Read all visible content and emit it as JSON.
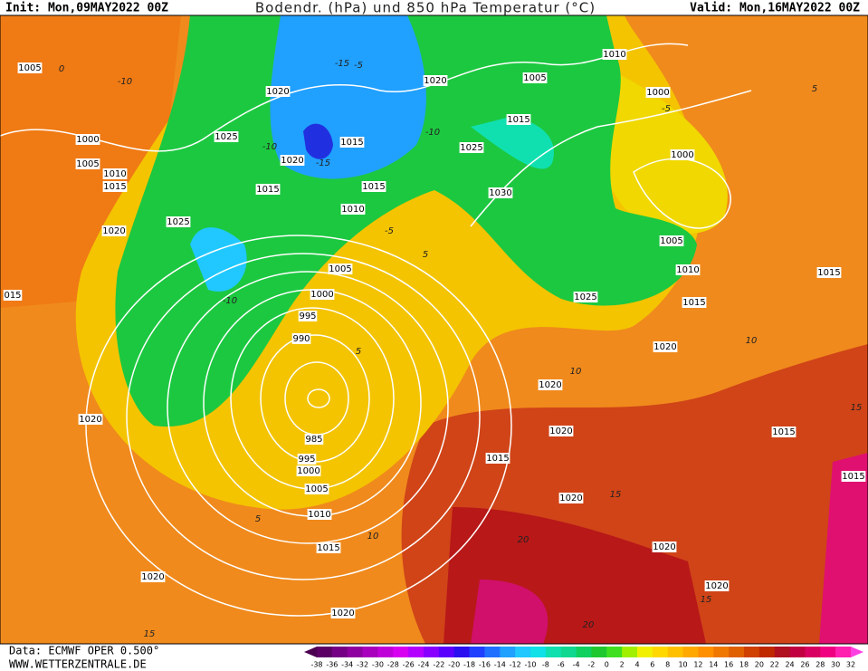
{
  "header": {
    "init": "Init: Mon,09MAY2022 00Z",
    "title": "Bodendr. (hPa) und 850 hPa Temperatur (°C)",
    "valid": "Valid: Mon,16MAY2022 00Z"
  },
  "map": {
    "isobar_labels": [
      "1005",
      "1020",
      "1020",
      "1010",
      "1005",
      "1000",
      "1025",
      "1015",
      "1015",
      "1025",
      "1000",
      "1005",
      "1010",
      "1015",
      "1020",
      "1015",
      "1015",
      "1010",
      "1030",
      "1000",
      "1025",
      "1020",
      "1005",
      "1005",
      "1010",
      "1015",
      "1000",
      "1025",
      "1015",
      "995",
      "990",
      "1020",
      "1020",
      "1020",
      "1020",
      "1015",
      "985",
      "995",
      "1000",
      "1015",
      "1005",
      "1020",
      "1010",
      "1015",
      "1020",
      "1020",
      "1020",
      "1020",
      "015",
      "1015"
    ],
    "temperature_labels": [
      "0",
      "-10",
      "-5",
      "-15",
      "-10",
      "-15",
      "-10",
      "-10",
      "-5",
      "5",
      "5",
      "5",
      "10",
      "10",
      "-5",
      "5",
      "10",
      "15",
      "15",
      "15",
      "20",
      "20",
      "15"
    ]
  },
  "footer": {
    "data": "Data: ECMWF OPER 0.500°",
    "site": "WWW.WETTERZENTRALE.DE"
  },
  "colorbar": {
    "ticks": [
      -38,
      -36,
      -34,
      -32,
      -30,
      -28,
      -26,
      -24,
      -22,
      -20,
      -18,
      -16,
      -14,
      -12,
      -10,
      -8,
      -6,
      -4,
      -2,
      0,
      2,
      4,
      6,
      8,
      10,
      12,
      14,
      16,
      18,
      20,
      22,
      24,
      26,
      28,
      30,
      32
    ],
    "colors": [
      "#4b0050",
      "#5c0066",
      "#760085",
      "#8f00a0",
      "#a800bc",
      "#c000d8",
      "#d800f0",
      "#b400ff",
      "#8800ff",
      "#5a00ff",
      "#2a10f0",
      "#2040ff",
      "#2070ff",
      "#20a0ff",
      "#20c8ff",
      "#10e0e8",
      "#10e0b0",
      "#10d890",
      "#10d060",
      "#20c830",
      "#40e020",
      "#a0f000",
      "#f0f000",
      "#ffd800",
      "#ffc000",
      "#ffa800",
      "#ff9000",
      "#f07800",
      "#e06000",
      "#d04000",
      "#c02800",
      "#b01020",
      "#c00040",
      "#d80060",
      "#f00080",
      "#ff20b0",
      "#ff40e0"
    ]
  }
}
